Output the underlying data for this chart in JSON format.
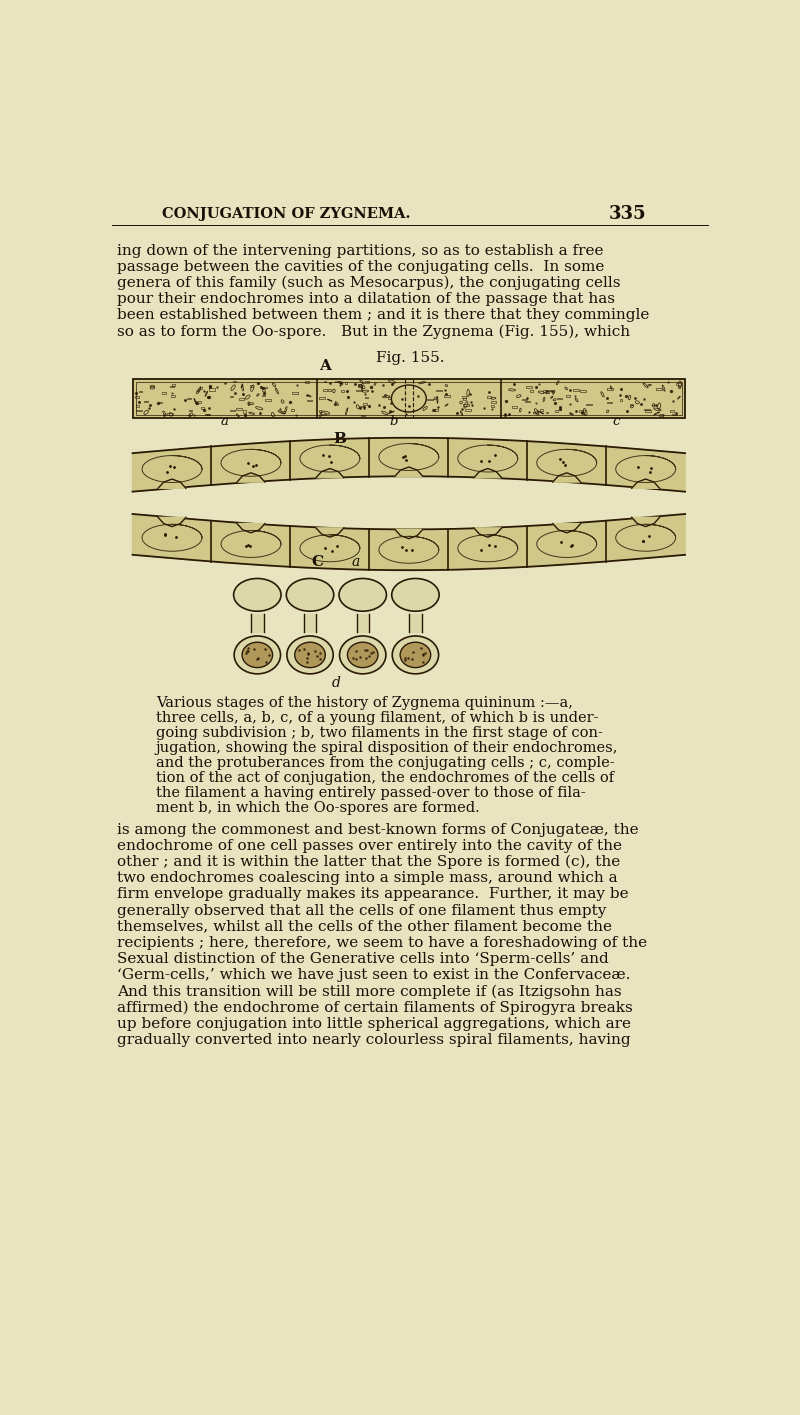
{
  "page_bg": "#e8e4c0",
  "header_text": "CONJUGATION OF ZYGNEMA.",
  "page_number": "335",
  "body_text_1": [
    "ing down of the intervening partitions, so as to establish a free",
    "passage between the cavities of the conjugating cells.  In some",
    "genera of this family (such as Mesocarpus), the conjugating cells",
    "pour their endochromes into a dilatation of the passage that has",
    "been established between them ; and it is there that they commingle",
    "so as to form the Oo-spore.   But in the Zygnema (Fig. 155), which"
  ],
  "fig_label": "Fig. 155.",
  "caption_text": [
    "Various stages of the history of Zygnema quininum :—a,",
    "three cells, a, b, c, of a young filament, of which b is under-",
    "going subdivision ; b, two filaments in the first stage of con-",
    "jugation, showing the spiral disposition of their endochromes,",
    "and the protuberances from the conjugating cells ; c, comple-",
    "tion of the act of conjugation, the endochromes of the cells of",
    "the filament a having entirely passed-over to those of fila-",
    "ment b, in which the Oo-spores are formed."
  ],
  "body_text_2": [
    "is among the commonest and best-known forms of Conjugateæ, the",
    "endochrome of one cell passes over entirely into the cavity of the",
    "other ; and it is within the latter that the Spore is formed (c), the",
    "two endochromes coalescing into a simple mass, around which a",
    "firm envelope gradually makes its appearance.  Further, it may be",
    "generally observed that all the cells of one filament thus empty",
    "themselves, whilst all the cells of the other filament become the",
    "recipients ; here, therefore, we seem to have a foreshadowing of the",
    "Sexual distinction of the Generative cells into ‘Sperm-cells’ and",
    "‘Germ-cells,’ which we have just seen to exist in the Confervaceæ.",
    "And this transition will be still more complete if (as Itzigsohn has",
    "affirmed) the endochrome of certain filaments of Spirogyra breaks",
    "up before conjugation into little spherical aggregations, which are",
    "gradually converted into nearly colourless spiral filaments, having"
  ],
  "text_color": "#1a1008",
  "dark_line": "#2a1a05",
  "cell_interior": "#d0c888",
  "cell_border": "#2a1a05",
  "spore_fill": "#b0985a",
  "empty_cell_fill": "#ddd8aa"
}
